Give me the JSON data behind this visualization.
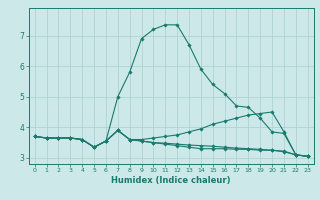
{
  "xlabel": "Humidex (Indice chaleur)",
  "background_color": "#cce8e8",
  "grid_color": "#aacfcf",
  "line_color": "#1a7a6e",
  "xlim": [
    -0.5,
    23.5
  ],
  "ylim": [
    2.8,
    7.9
  ],
  "xticks": [
    0,
    1,
    2,
    3,
    4,
    5,
    6,
    7,
    8,
    9,
    10,
    11,
    12,
    13,
    14,
    15,
    16,
    17,
    18,
    19,
    20,
    21,
    22,
    23
  ],
  "yticks": [
    3,
    4,
    5,
    6,
    7
  ],
  "lines": [
    {
      "x": [
        0,
        1,
        2,
        3,
        4,
        5,
        6,
        7,
        8,
        9,
        10,
        11,
        12,
        13,
        14,
        15,
        16,
        17,
        18,
        19,
        20,
        21,
        22,
        23
      ],
      "y": [
        3.7,
        3.65,
        3.65,
        3.65,
        3.6,
        3.35,
        3.55,
        5.0,
        5.8,
        6.9,
        7.2,
        7.35,
        7.35,
        6.7,
        5.9,
        5.4,
        5.1,
        4.7,
        4.65,
        4.3,
        3.85,
        3.8,
        3.1,
        3.05
      ]
    },
    {
      "x": [
        0,
        1,
        2,
        3,
        4,
        5,
        6,
        7,
        8,
        9,
        10,
        11,
        12,
        13,
        14,
        15,
        16,
        17,
        18,
        19,
        20,
        21,
        22,
        23
      ],
      "y": [
        3.7,
        3.65,
        3.65,
        3.65,
        3.6,
        3.35,
        3.55,
        3.9,
        3.6,
        3.6,
        3.65,
        3.7,
        3.75,
        3.85,
        3.95,
        4.1,
        4.2,
        4.3,
        4.4,
        4.45,
        4.5,
        3.85,
        3.1,
        3.05
      ]
    },
    {
      "x": [
        0,
        1,
        2,
        3,
        4,
        5,
        6,
        7,
        8,
        9,
        10,
        11,
        12,
        13,
        14,
        15,
        16,
        17,
        18,
        19,
        20,
        21,
        22,
        23
      ],
      "y": [
        3.7,
        3.65,
        3.65,
        3.65,
        3.6,
        3.35,
        3.55,
        3.9,
        3.6,
        3.55,
        3.5,
        3.45,
        3.4,
        3.35,
        3.3,
        3.3,
        3.3,
        3.28,
        3.28,
        3.25,
        3.25,
        3.2,
        3.1,
        3.05
      ]
    },
    {
      "x": [
        0,
        1,
        2,
        3,
        4,
        5,
        6,
        7,
        8,
        9,
        10,
        11,
        12,
        13,
        14,
        15,
        16,
        17,
        18,
        19,
        20,
        21,
        22,
        23
      ],
      "y": [
        3.7,
        3.65,
        3.65,
        3.65,
        3.6,
        3.35,
        3.55,
        3.9,
        3.6,
        3.55,
        3.5,
        3.48,
        3.45,
        3.42,
        3.4,
        3.38,
        3.35,
        3.32,
        3.3,
        3.28,
        3.25,
        3.22,
        3.1,
        3.05
      ]
    }
  ]
}
